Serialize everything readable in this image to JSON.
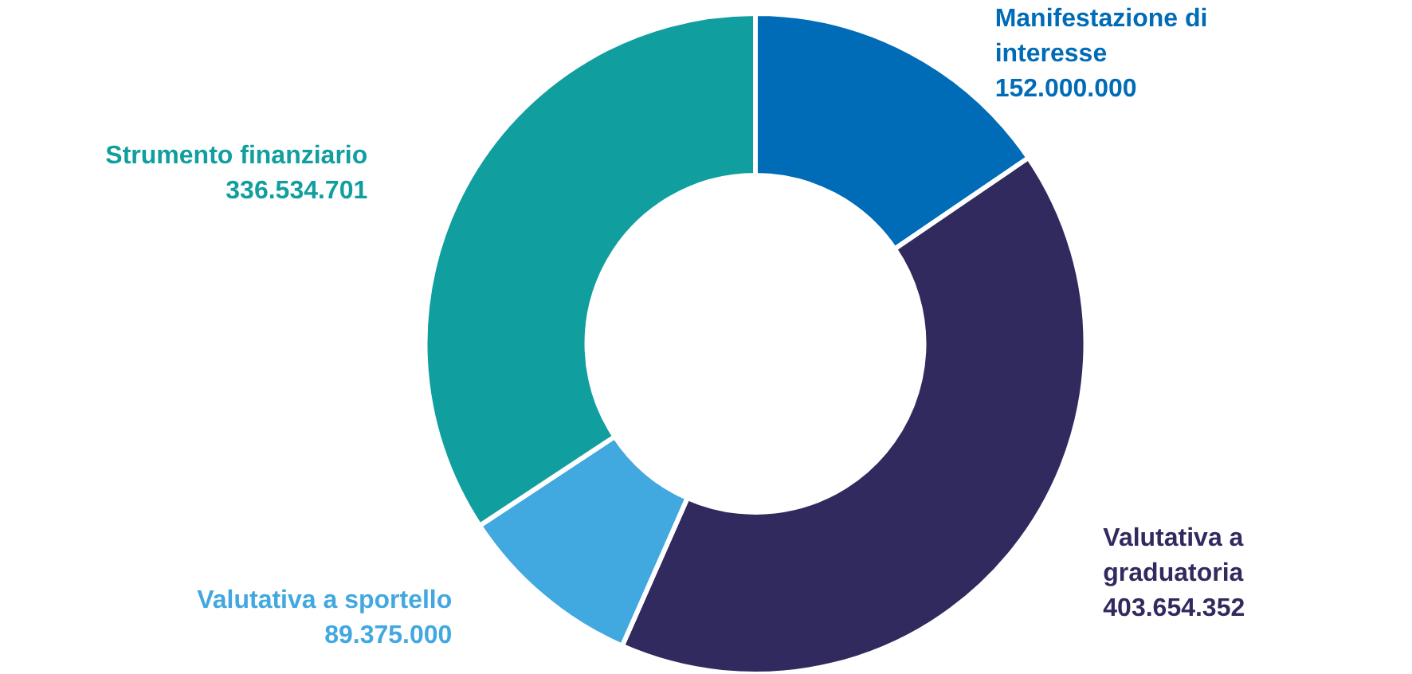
{
  "chart_data": {
    "type": "donut",
    "categories": [
      "Manifestazione di interesse",
      "Valutativa a graduatoria",
      "Valutativa a sportello",
      "Strumento finanziario"
    ],
    "values": [
      152000000,
      403654352,
      89375000,
      336534701
    ],
    "value_labels": [
      "152.000.000",
      "403.654.352",
      "89.375.000",
      "336.534.701"
    ],
    "colors": [
      "#006bb6",
      "#312a5e",
      "#42a8e0",
      "#119e9f"
    ],
    "legend": false
  }
}
